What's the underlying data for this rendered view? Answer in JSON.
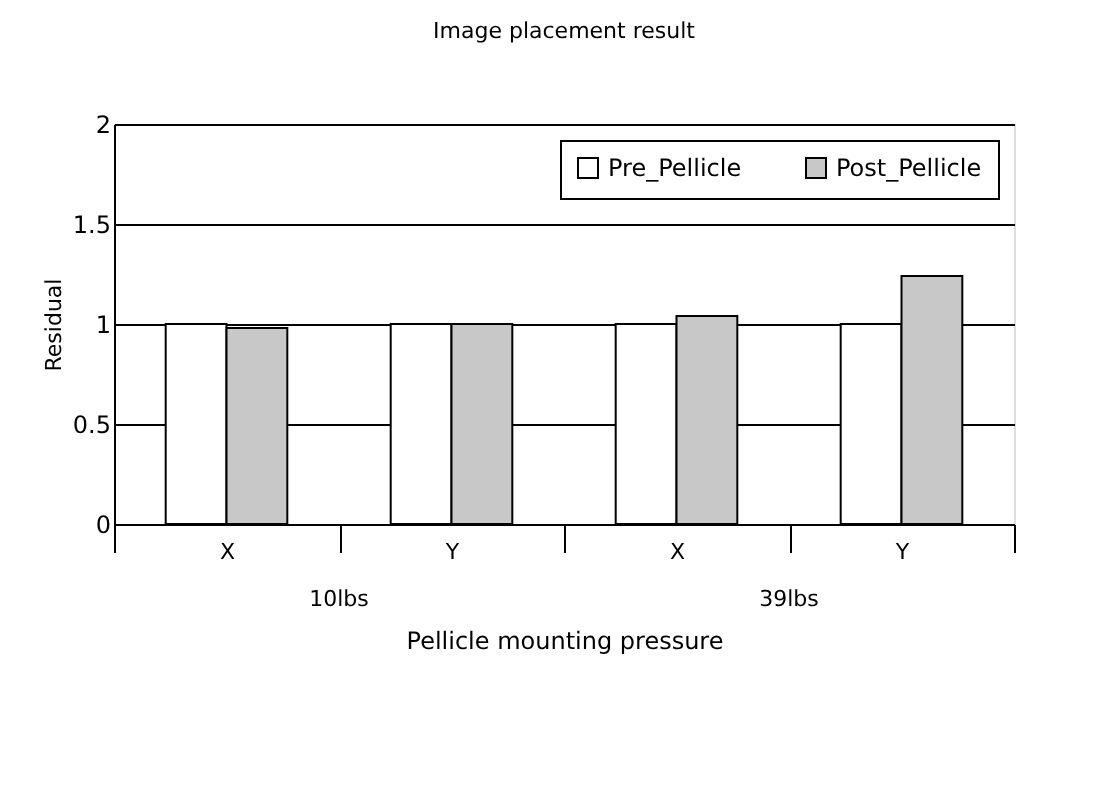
{
  "chart_data": {
    "type": "bar",
    "title": "Image placement result",
    "xlabel": "Pellicle mounting pressure",
    "ylabel": "Residual",
    "categories": [
      "X",
      "Y",
      "X",
      "Y"
    ],
    "series": [
      {
        "name": "Pre_Pellicle",
        "color": "#ffffff",
        "values": [
          1,
          1,
          1,
          1
        ]
      },
      {
        "name": "Post_Pellicle",
        "color": "#c8c8c8",
        "values": [
          0.98,
          1.0,
          1.04,
          1.24
        ]
      }
    ],
    "annotations": [
      "10lbs",
      "39lbs"
    ],
    "ylim": [
      0,
      2
    ],
    "yticks": [
      0,
      0.5,
      1,
      1.5,
      2
    ],
    "grid": "y",
    "legend": "top right"
  }
}
